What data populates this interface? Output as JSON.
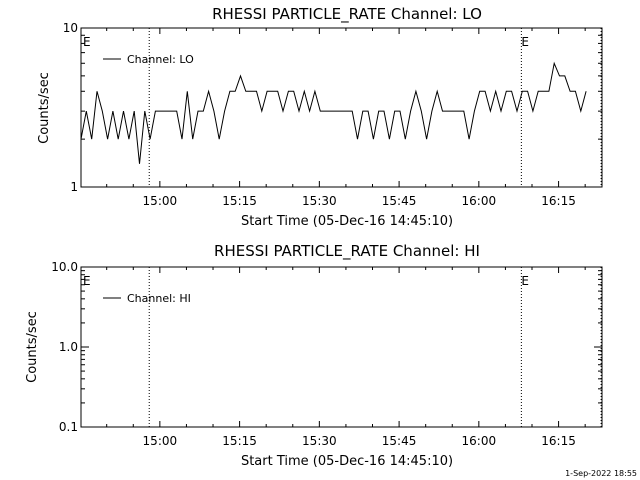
{
  "footer": "1-Sep-2022 18:55",
  "chart_data": [
    {
      "type": "line",
      "title": "RHESSI PARTICLE_RATE Channel: LO",
      "xlabel": "Start Time (05-Dec-16 14:45:10)",
      "ylabel": "Counts/sec",
      "yscale": "log",
      "ylim": [
        1,
        10
      ],
      "ytick_labels": [
        "1",
        "10"
      ],
      "xtick_labels": [
        "15:00",
        "15:15",
        "15:30",
        "15:45",
        "16:00",
        "16:15"
      ],
      "legend": {
        "placement": "top-left",
        "entries": [
          "Channel: LO"
        ]
      },
      "event_markers": {
        "label": "E",
        "times": [
          "14:45",
          "16:08"
        ]
      },
      "dotted_lines": [
        "14:58",
        "16:08",
        "16:23"
      ],
      "series": [
        {
          "name": "Channel: LO",
          "x": [
            "14:45",
            "14:46",
            "14:47",
            "14:48",
            "14:49",
            "14:50",
            "14:51",
            "14:52",
            "14:53",
            "14:54",
            "14:55",
            "14:56",
            "14:57",
            "14:58",
            "14:59",
            "15:00",
            "15:01",
            "15:02",
            "15:03",
            "15:04",
            "15:05",
            "15:06",
            "15:07",
            "15:08",
            "15:09",
            "15:10",
            "15:11",
            "15:12",
            "15:13",
            "15:14",
            "15:15",
            "15:16",
            "15:17",
            "15:18",
            "15:19",
            "15:20",
            "15:21",
            "15:22",
            "15:23",
            "15:24",
            "15:25",
            "15:26",
            "15:27",
            "15:28",
            "15:29",
            "15:30",
            "15:31",
            "15:32",
            "15:33",
            "15:34",
            "15:35",
            "15:36",
            "15:37",
            "15:38",
            "15:39",
            "15:40",
            "15:41",
            "15:42",
            "15:43",
            "15:44",
            "15:45",
            "15:46",
            "15:47",
            "15:48",
            "15:49",
            "15:50",
            "15:51",
            "15:52",
            "15:53",
            "15:54",
            "15:55",
            "15:56",
            "15:57",
            "15:58",
            "15:59",
            "16:00",
            "16:01",
            "16:02",
            "16:03",
            "16:04",
            "16:05",
            "16:06",
            "16:07",
            "16:08",
            "16:09",
            "16:10",
            "16:11",
            "16:12",
            "16:13",
            "16:14",
            "16:15",
            "16:16",
            "16:17",
            "16:18",
            "16:19",
            "16:20"
          ],
          "y": [
            2,
            3,
            2,
            4,
            3,
            2,
            3,
            2,
            3,
            2,
            3,
            1.4,
            3,
            2,
            3,
            3,
            3,
            3,
            3,
            2,
            4,
            2,
            3,
            3,
            4,
            3,
            2,
            3,
            4,
            4,
            5,
            4,
            4,
            4,
            3,
            4,
            4,
            4,
            3,
            4,
            4,
            3,
            4,
            3,
            4,
            3,
            3,
            3,
            3,
            3,
            3,
            3,
            2,
            3,
            3,
            2,
            3,
            3,
            2,
            3,
            3,
            2,
            3,
            4,
            3,
            2,
            3,
            4,
            3,
            3,
            3,
            3,
            3,
            2,
            3,
            4,
            4,
            3,
            4,
            3,
            4,
            4,
            3,
            4,
            4,
            3,
            4,
            4,
            4,
            6,
            5,
            5,
            4,
            4,
            3,
            4
          ]
        }
      ]
    },
    {
      "type": "line",
      "title": "RHESSI PARTICLE_RATE Channel: HI",
      "xlabel": "Start Time (05-Dec-16 14:45:10)",
      "ylabel": "Counts/sec",
      "yscale": "log",
      "ylim": [
        0.1,
        10.0
      ],
      "ytick_labels": [
        "0.1",
        "1.0",
        "10.0"
      ],
      "xtick_labels": [
        "15:00",
        "15:15",
        "15:30",
        "15:45",
        "16:00",
        "16:15"
      ],
      "legend": {
        "placement": "top-left",
        "entries": [
          "Channel: HI"
        ]
      },
      "event_markers": {
        "label": "E",
        "times": [
          "14:45",
          "16:08"
        ]
      },
      "dotted_lines": [
        "14:58",
        "16:08",
        "16:23"
      ],
      "series": [
        {
          "name": "Channel: HI",
          "x": [],
          "y": []
        }
      ]
    }
  ]
}
